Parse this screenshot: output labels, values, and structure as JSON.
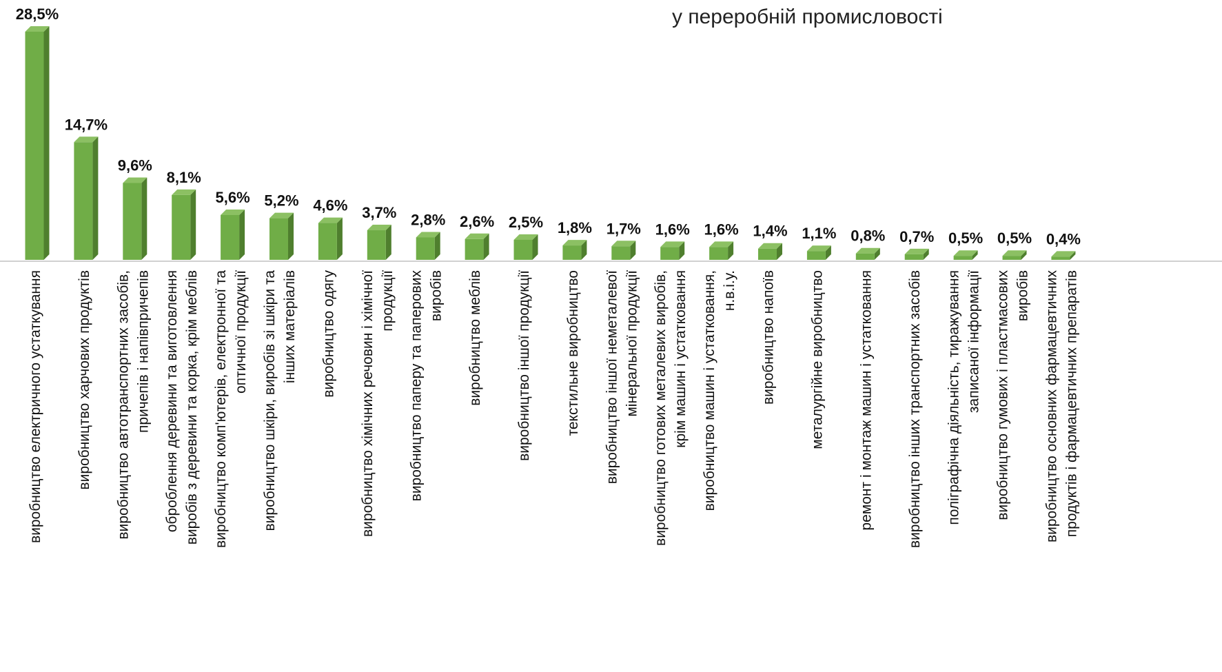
{
  "subtitle": "у переробній промисловості",
  "chart_data": {
    "type": "bar",
    "title": "",
    "subtitle": "у переробній промисловості",
    "xlabel": "",
    "ylabel": "",
    "ylim": [
      0,
      30
    ],
    "grid": false,
    "legend": "none",
    "bar_color": "#70ad47",
    "bar_side_color": "#4f7f2e",
    "bar_top_color": "#8cc063",
    "categories": [
      [
        "виробництво електричного устаткування"
      ],
      [
        "виробництво харчових продуктів"
      ],
      [
        "виробництво автотранспортних засобів,",
        "причепів і напівпричепів"
      ],
      [
        "оброблення деревини та виготовлення",
        "виробів з деревини та корка, крім меблів"
      ],
      [
        "виробництво комп'ютерів, електронної та",
        "оптичної продукції"
      ],
      [
        "виробництво шкіри, виробів зі шкіри та",
        "інших матеріалів"
      ],
      [
        "виробництво одягу"
      ],
      [
        "виробництво хімічних речовин і хімічної",
        "продукції"
      ],
      [
        "виробництво паперу та паперових",
        "виробів"
      ],
      [
        "виробництво меблів"
      ],
      [
        "виробництво іншої продукції"
      ],
      [
        "текстильне виробництво"
      ],
      [
        "виробництво іншої неметалевої",
        "мінеральної продукції"
      ],
      [
        "виробництво готових металевих виробів,",
        "крім машин і устатковання"
      ],
      [
        "виробництво машин і устатковання,",
        "н.в.і.у."
      ],
      [
        "виробництво напоїв"
      ],
      [
        "металургійне виробництво"
      ],
      [
        "ремонт і монтаж машин і устатковання"
      ],
      [
        "виробництво інших транспортних засобів"
      ],
      [
        "поліграфічна діяльність, тиражування",
        "записаної інформації"
      ],
      [
        "виробництво гумових і пластмасових",
        "виробів"
      ],
      [
        "виробництво основних фармацевтичних",
        "продуктів і фармацевтичних препаратів"
      ]
    ],
    "values": [
      28.5,
      14.7,
      9.6,
      8.1,
      5.6,
      5.2,
      4.6,
      3.7,
      2.8,
      2.6,
      2.5,
      1.8,
      1.7,
      1.6,
      1.6,
      1.4,
      1.1,
      0.8,
      0.7,
      0.5,
      0.5,
      0.4
    ],
    "labels": [
      "28,5%",
      "14,7%",
      "9,6%",
      "8,1%",
      "5,6%",
      "5,2%",
      "4,6%",
      "3,7%",
      "2,8%",
      "2,6%",
      "2,5%",
      "1,8%",
      "1,7%",
      "1,6%",
      "1,6%",
      "1,4%",
      "1,1%",
      "0,8%",
      "0,7%",
      "0,5%",
      "0,5%",
      "0,4%"
    ]
  }
}
